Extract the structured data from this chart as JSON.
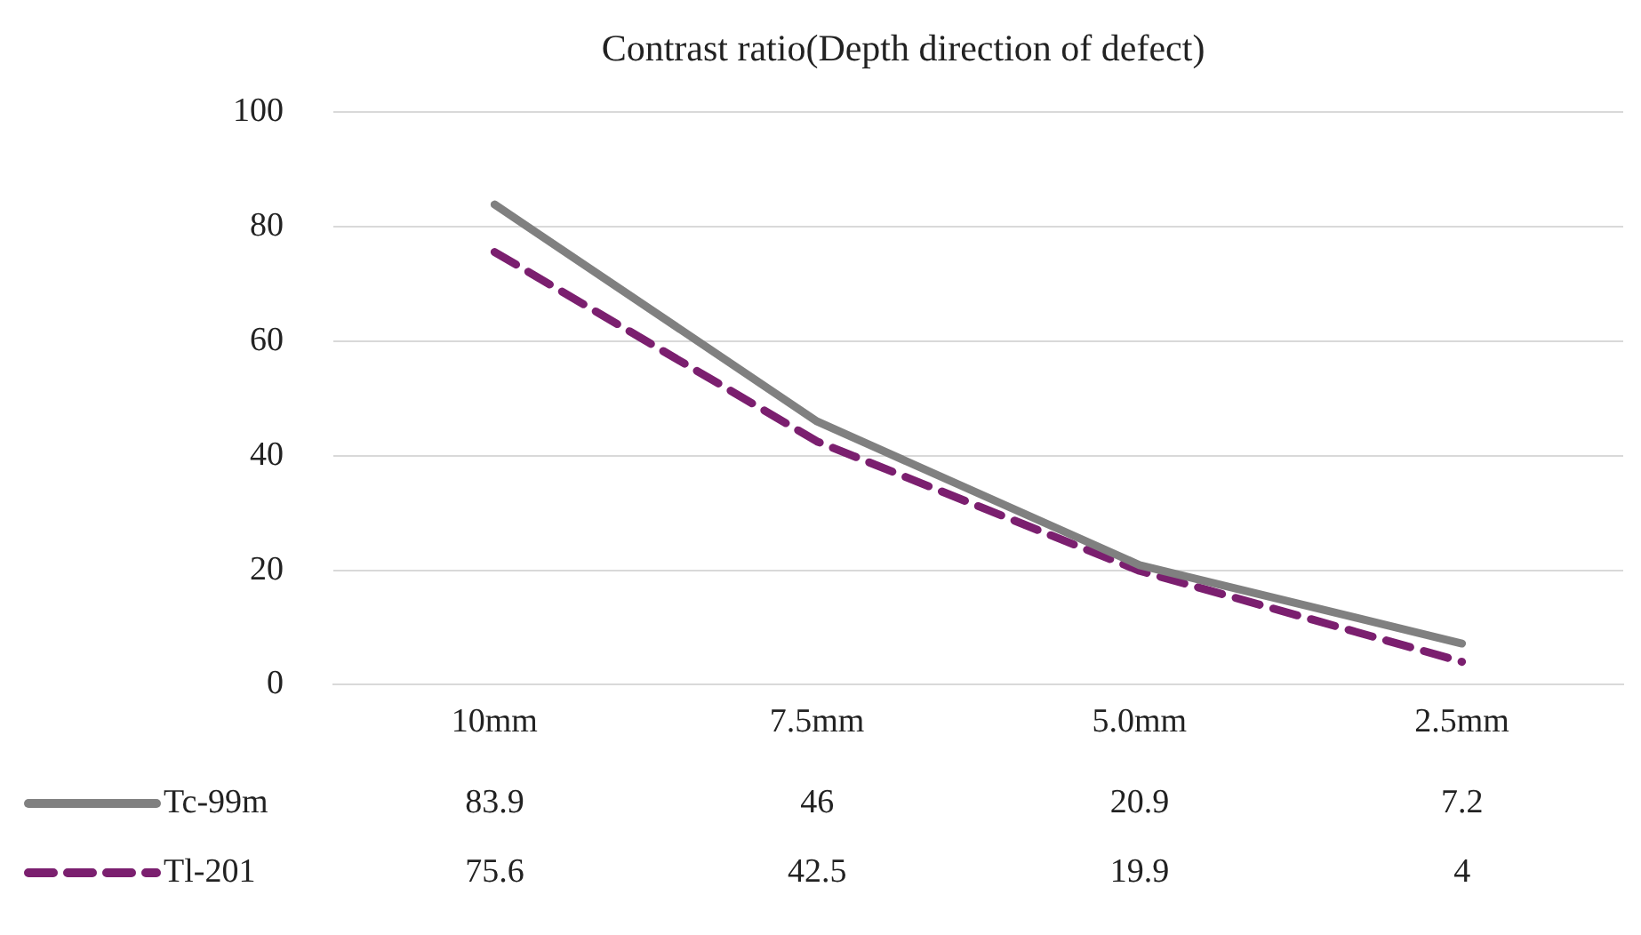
{
  "chart_data": {
    "type": "line",
    "title": "Contrast ratio(Depth direction of defect)",
    "categories": [
      "10mm",
      "7.5mm",
      "5.0mm",
      "2.5mm"
    ],
    "series": [
      {
        "name": "Tc-99m",
        "color": "#808080",
        "values": [
          83.9,
          46,
          20.9,
          7.2
        ],
        "line_style": "solid"
      },
      {
        "name": "Tl-201",
        "color": "#7b1f6f",
        "values": [
          75.6,
          42.5,
          19.9,
          4
        ],
        "line_style": "dashed"
      }
    ],
    "ylim": [
      0,
      100
    ],
    "yticks": [
      0,
      20,
      40,
      60,
      80,
      100
    ],
    "grid": "y",
    "legend": "bottom left",
    "data_labels": true,
    "marker": "none"
  }
}
